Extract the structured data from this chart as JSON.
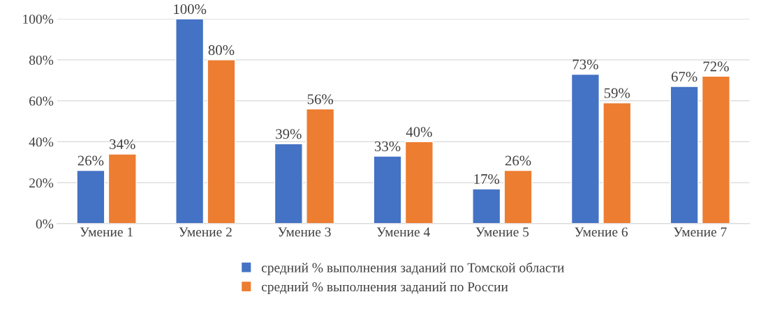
{
  "chart_data": {
    "type": "bar",
    "categories": [
      "Умение 1",
      "Умение 2",
      "Умение 3",
      "Умение 4",
      "Умение 5",
      "Умение 6",
      "Умение 7"
    ],
    "series": [
      {
        "name": "средний % выполнения заданий по Томской области",
        "color": "#4472c4",
        "values": [
          26,
          100,
          39,
          33,
          17,
          73,
          67
        ],
        "value_labels": [
          "26%",
          "100%",
          "39%",
          "33%",
          "17%",
          "73%",
          "67%"
        ]
      },
      {
        "name": "средний % выполнения заданий по России",
        "color": "#ed7d31",
        "values": [
          34,
          80,
          56,
          40,
          26,
          59,
          72
        ],
        "value_labels": [
          "34%",
          "80%",
          "56%",
          "40%",
          "26%",
          "59%",
          "72%"
        ]
      }
    ],
    "ylim": [
      0,
      100
    ],
    "yticks": [
      {
        "value": 0,
        "label": "0%"
      },
      {
        "value": 20,
        "label": "20%"
      },
      {
        "value": 40,
        "label": "40%"
      },
      {
        "value": 60,
        "label": "60%"
      },
      {
        "value": 80,
        "label": "80%"
      },
      {
        "value": 100,
        "label": "100%"
      }
    ],
    "grid": "y",
    "legend": "bottom"
  }
}
